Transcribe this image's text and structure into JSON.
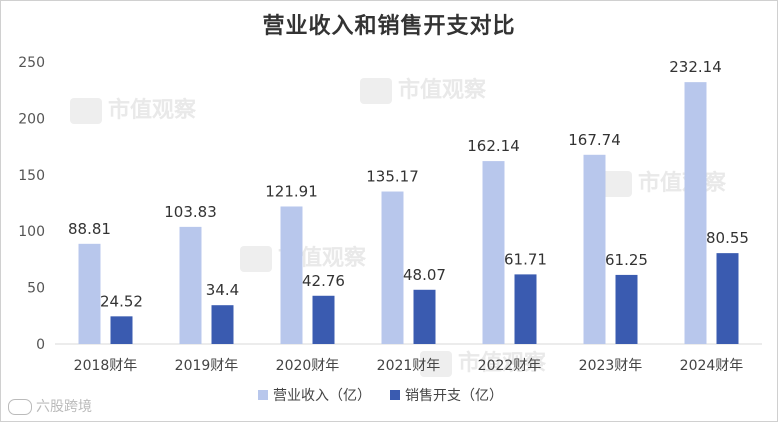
{
  "chart_data": {
    "type": "bar",
    "title": "营业收入和销售开支对比",
    "categories": [
      "2018财年",
      "2019财年",
      "2020财年",
      "2021财年",
      "2022财年",
      "2023财年",
      "2024财年"
    ],
    "series": [
      {
        "name": "营业收入（亿）",
        "values": [
          88.81,
          103.83,
          121.91,
          135.17,
          162.14,
          167.74,
          232.14
        ],
        "color": "#b8c7ec"
      },
      {
        "name": "销售开支（亿）",
        "values": [
          24.52,
          34.4,
          42.76,
          48.07,
          61.71,
          61.25,
          80.55
        ],
        "color": "#3a5bb0"
      }
    ],
    "data_labels": [
      [
        "88.81",
        "103.83",
        "121.91",
        "135.17",
        "162.14",
        "167.74",
        "232.14"
      ],
      [
        "24.52",
        "34.4",
        "42.76",
        "48.07",
        "61.71",
        "61.25",
        "80.55"
      ]
    ],
    "yticks": [
      0,
      50,
      100,
      150,
      200,
      250
    ],
    "ylim": [
      0,
      250
    ],
    "grid": false,
    "legend_position": "bottom"
  },
  "watermark": {
    "text": "市值观察"
  },
  "footer": {
    "text": "六股跨境"
  }
}
